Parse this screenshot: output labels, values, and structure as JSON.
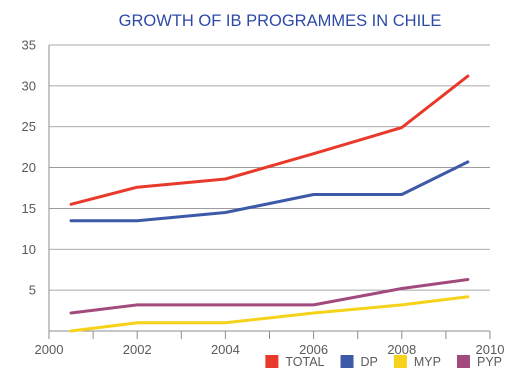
{
  "chart_data": {
    "type": "line",
    "title": "GROWTH OF IB PROGRAMMES IN CHILE",
    "xlabel": "",
    "ylabel": "",
    "x": [
      2000.5,
      2002,
      2004,
      2006,
      2008,
      2009.5
    ],
    "x_ticks": [
      2000,
      2002,
      2004,
      2006,
      2008,
      2010
    ],
    "y_ticks": [
      5,
      10,
      15,
      20,
      25,
      30,
      35
    ],
    "xlim": [
      2000,
      2010
    ],
    "ylim": [
      0,
      35
    ],
    "grid": "horizontal",
    "legend_position": "bottom-right",
    "series": [
      {
        "name": "TOTAL",
        "color": "#e8392a",
        "values": [
          15.5,
          17.6,
          18.6,
          21.7,
          24.9,
          31.2
        ]
      },
      {
        "name": "DP",
        "color": "#3d5aa9",
        "values": [
          13.5,
          13.5,
          14.5,
          16.7,
          16.7,
          20.7
        ]
      },
      {
        "name": "MYP",
        "color": "#f6d21a",
        "values": [
          0.0,
          1.0,
          1.0,
          2.2,
          3.2,
          4.2
        ]
      },
      {
        "name": "PYP",
        "color": "#a24a7c",
        "values": [
          2.2,
          3.2,
          3.2,
          3.2,
          5.2,
          6.3
        ]
      }
    ]
  }
}
